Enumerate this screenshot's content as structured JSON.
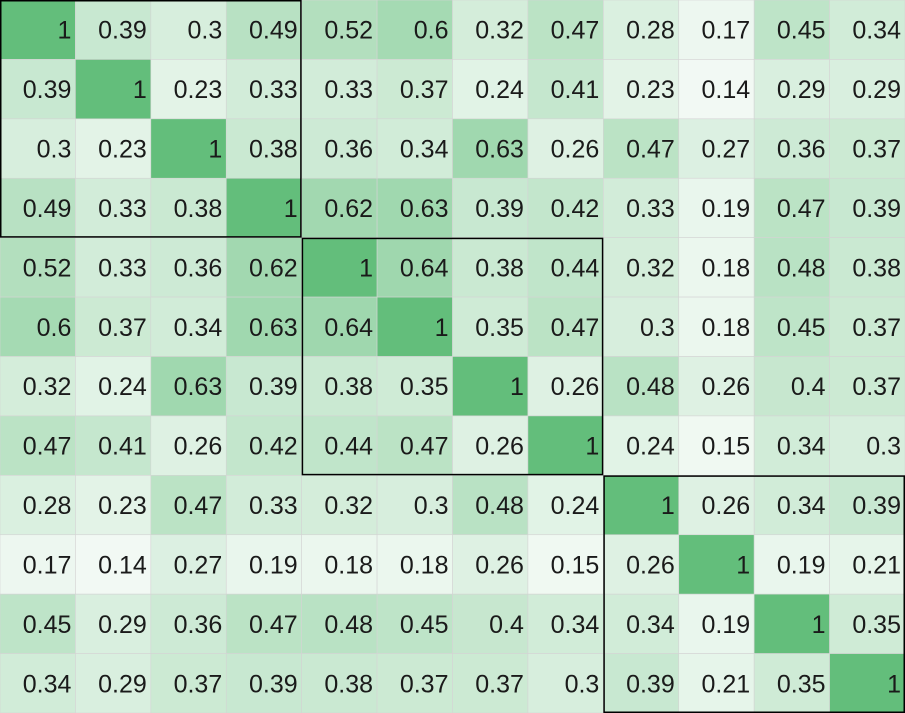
{
  "chart_data": {
    "type": "heatmap",
    "title": "",
    "xlabel": "",
    "ylabel": "",
    "legend": "none",
    "grid": true,
    "color_low": "#ffffff",
    "color_high": "#63be7b",
    "grid_color": "#d4d4d4",
    "group_border_color": "#000000",
    "rows": 12,
    "cols": 12,
    "values": [
      [
        "1",
        "0.39",
        "0.3",
        "0.49",
        "0.52",
        "0.6",
        "0.32",
        "0.47",
        "0.28",
        "0.17",
        "0.45",
        "0.34"
      ],
      [
        "0.39",
        "1",
        "0.23",
        "0.33",
        "0.33",
        "0.37",
        "0.24",
        "0.41",
        "0.23",
        "0.14",
        "0.29",
        "0.29"
      ],
      [
        "0.3",
        "0.23",
        "1",
        "0.38",
        "0.36",
        "0.34",
        "0.63",
        "0.26",
        "0.47",
        "0.27",
        "0.36",
        "0.37"
      ],
      [
        "0.49",
        "0.33",
        "0.38",
        "1",
        "0.62",
        "0.63",
        "0.39",
        "0.42",
        "0.33",
        "0.19",
        "0.47",
        "0.39"
      ],
      [
        "0.52",
        "0.33",
        "0.36",
        "0.62",
        "1",
        "0.64",
        "0.38",
        "0.44",
        "0.32",
        "0.18",
        "0.48",
        "0.38"
      ],
      [
        "0.6",
        "0.37",
        "0.34",
        "0.63",
        "0.64",
        "1",
        "0.35",
        "0.47",
        "0.3",
        "0.18",
        "0.45",
        "0.37"
      ],
      [
        "0.32",
        "0.24",
        "0.63",
        "0.39",
        "0.38",
        "0.35",
        "1",
        "0.26",
        "0.48",
        "0.26",
        "0.4",
        "0.37"
      ],
      [
        "0.47",
        "0.41",
        "0.26",
        "0.42",
        "0.44",
        "0.47",
        "0.26",
        "1",
        "0.24",
        "0.15",
        "0.34",
        "0.3"
      ],
      [
        "0.28",
        "0.23",
        "0.47",
        "0.33",
        "0.32",
        "0.3",
        "0.48",
        "0.24",
        "1",
        "0.26",
        "0.34",
        "0.39"
      ],
      [
        "0.17",
        "0.14",
        "0.27",
        "0.19",
        "0.18",
        "0.18",
        "0.26",
        "0.15",
        "0.26",
        "1",
        "0.19",
        "0.21"
      ],
      [
        "0.45",
        "0.29",
        "0.36",
        "0.47",
        "0.48",
        "0.45",
        "0.4",
        "0.34",
        "0.34",
        "0.19",
        "1",
        "0.35"
      ],
      [
        "0.34",
        "0.29",
        "0.37",
        "0.39",
        "0.38",
        "0.37",
        "0.37",
        "0.3",
        "0.39",
        "0.21",
        "0.35",
        "1"
      ]
    ],
    "blocks": [
      {
        "row_start": 0,
        "col_start": 0,
        "size": 4
      },
      {
        "row_start": 4,
        "col_start": 4,
        "size": 4
      },
      {
        "row_start": 8,
        "col_start": 8,
        "size": 4
      }
    ]
  }
}
